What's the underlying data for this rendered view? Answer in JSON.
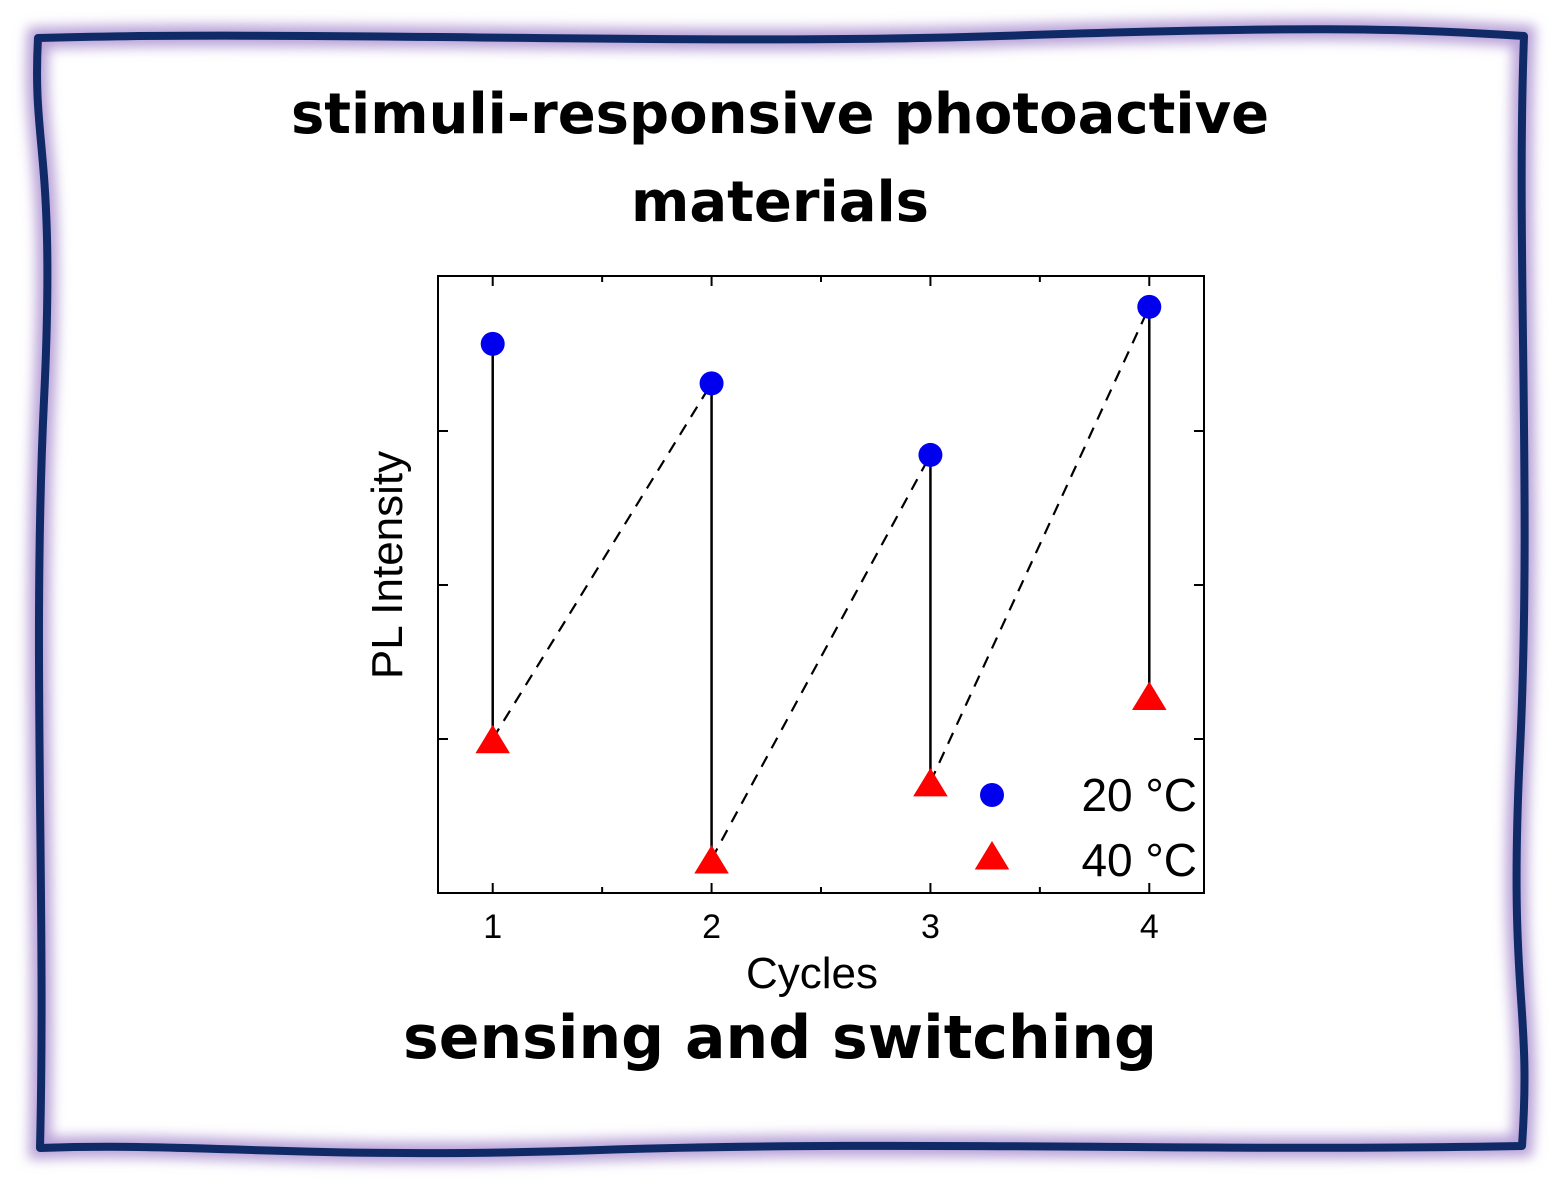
{
  "title_lines": [
    "stimuli-responsive photoactive",
    "materials"
  ],
  "caption": "sensing and switching",
  "colors": {
    "frame_border": "#0f2a66",
    "frame_glow": "#b9a3d8",
    "series_20": "#0000ee",
    "series_40": "#ff0000",
    "axis": "#000000"
  },
  "chart_data": {
    "type": "scatter",
    "xlabel": "Cycles",
    "ylabel": "PL Intensity",
    "x_ticks": [
      "1",
      "2",
      "3",
      "4"
    ],
    "xlim": [
      0.75,
      4.25
    ],
    "ylim": [
      0,
      1
    ],
    "y_ticks_unlabeled": 3,
    "legend_position": "bottom-right",
    "series": [
      {
        "name": "20 °C",
        "marker": "circle",
        "color": "#0000ee",
        "x": [
          1,
          2,
          3,
          4
        ],
        "y": [
          0.89,
          0.826,
          0.71,
          0.95
        ]
      },
      {
        "name": "40 °C",
        "marker": "triangle",
        "color": "#ff0000",
        "x": [
          1,
          2,
          3,
          4
        ],
        "y": [
          0.25,
          0.055,
          0.18,
          0.32
        ]
      }
    ],
    "annotations": {
      "solid_drops": "vertical solid lines from each 20 °C point down to the 40 °C point of the same cycle",
      "dashed_recoveries": "dashed lines from each 40 °C point up to the next cycle's 20 °C point"
    }
  }
}
